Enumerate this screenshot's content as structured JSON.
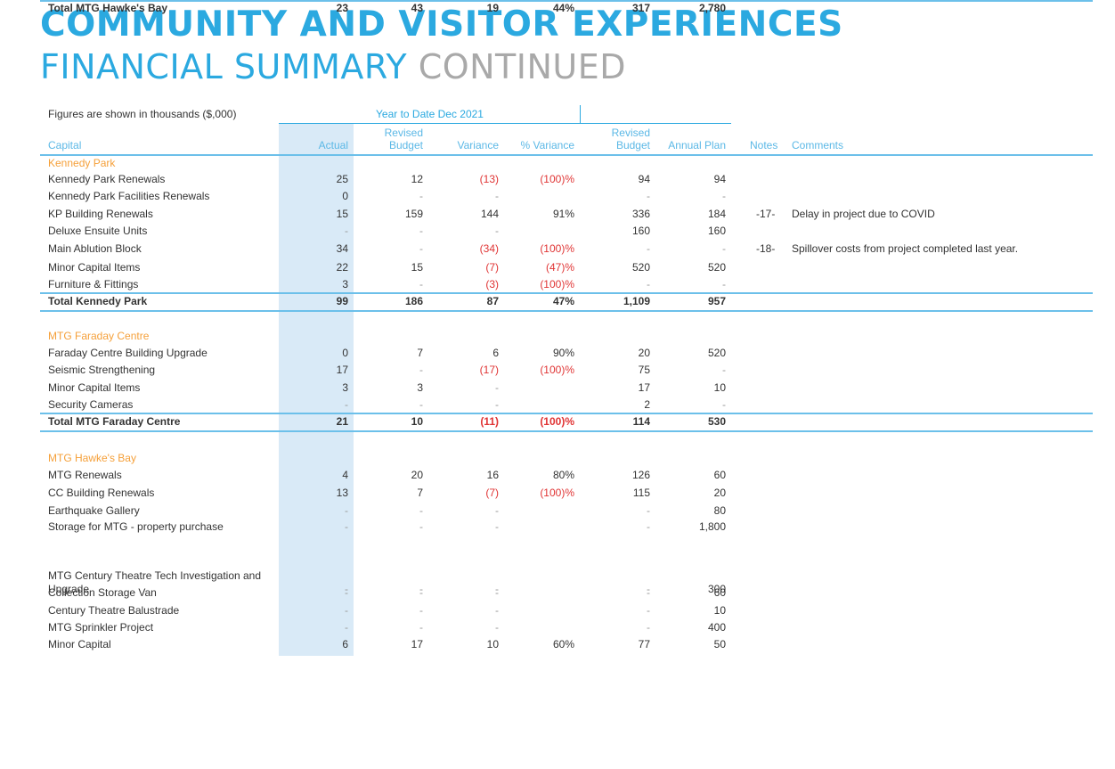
{
  "title": {
    "line1": "COMMUNITY AND VISITOR EXPERIENCES",
    "line2": "FINANCIAL SUMMARY",
    "line2_suffix": "CONTINUED"
  },
  "colors": {
    "accent": "#2ba9e0",
    "section": "#f5a03a",
    "negative": "#e03434",
    "shade": "#d9eaf7"
  },
  "table": {
    "note": "Figures are shown in thousands ($,000)",
    "group_header": "Year to Date Dec 2021",
    "headers": {
      "capital": "Capital",
      "actual": "Actual",
      "rb_line1": "Revised",
      "rb_line2": "Budget",
      "variance": "Variance",
      "pct_variance": "% Variance",
      "rb2_line1": "Revised",
      "rb2_line2": "Budget",
      "annual_plan": "Annual Plan",
      "notes": "Notes",
      "comments": "Comments"
    },
    "rows": [
      {
        "type": "section",
        "label": "Kennedy Park"
      },
      {
        "type": "item",
        "label": "Kennedy Park Renewals",
        "actual": "25",
        "rb": "12",
        "var": "(13)",
        "pct": "(100)%",
        "rb2": "94",
        "ap": "94",
        "notes": "",
        "comment": ""
      },
      {
        "type": "item",
        "label": "Kennedy Park Facilities Renewals",
        "actual": "0",
        "rb": "-",
        "var": "-",
        "pct": "",
        "rb2": "-",
        "ap": "-",
        "notes": "",
        "comment": ""
      },
      {
        "type": "item",
        "label": "KP Building Renewals",
        "actual": "15",
        "rb": "159",
        "var": "144",
        "pct": "91%",
        "rb2": "336",
        "ap": "184",
        "notes": "-17-",
        "comment": "Delay in project due to COVID"
      },
      {
        "type": "item",
        "label": "Deluxe Ensuite Units",
        "actual": "-",
        "rb": "-",
        "var": "-",
        "pct": "",
        "rb2": "160",
        "ap": "160",
        "notes": "",
        "comment": ""
      },
      {
        "type": "item",
        "label": "Main Ablution Block",
        "actual": "34",
        "rb": "-",
        "var": "(34)",
        "pct": "(100)%",
        "rb2": "-",
        "ap": "-",
        "notes": "-18-",
        "comment": "Spillover costs from project completed last year."
      },
      {
        "type": "item",
        "label": "Minor Capital Items",
        "actual": "22",
        "rb": "15",
        "var": "(7)",
        "pct": "(47)%",
        "rb2": "520",
        "ap": "520",
        "notes": "",
        "comment": ""
      },
      {
        "type": "item",
        "label": "Furniture & Fittings",
        "actual": "3",
        "rb": "-",
        "var": "(3)",
        "pct": "(100)%",
        "rb2": "-",
        "ap": "-",
        "notes": "",
        "comment": ""
      },
      {
        "type": "total",
        "label": "Total Kennedy Park",
        "actual": "99",
        "rb": "186",
        "var": "87",
        "pct": "47%",
        "rb2": "1,109",
        "ap": "957"
      },
      {
        "type": "section",
        "label": "MTG Faraday Centre"
      },
      {
        "type": "item",
        "label": "Faraday Centre Building Upgrade",
        "actual": "0",
        "rb": "7",
        "var": "6",
        "pct": "90%",
        "rb2": "20",
        "ap": "520",
        "notes": "",
        "comment": ""
      },
      {
        "type": "item",
        "label": "Seismic Strengthening",
        "actual": "17",
        "rb": "-",
        "var": "(17)",
        "pct": "(100)%",
        "rb2": "75",
        "ap": "-",
        "notes": "",
        "comment": ""
      },
      {
        "type": "item",
        "label": "Minor Capital Items",
        "actual": "3",
        "rb": "3",
        "var": "-",
        "pct": "",
        "rb2": "17",
        "ap": "10",
        "notes": "",
        "comment": ""
      },
      {
        "type": "item",
        "label": "Security Cameras",
        "actual": "-",
        "rb": "-",
        "var": "-",
        "pct": "",
        "rb2": "2",
        "ap": "-",
        "notes": "",
        "comment": ""
      },
      {
        "type": "total",
        "label": "Total MTG Faraday Centre",
        "actual": "21",
        "rb": "10",
        "var": "(11)",
        "pct": "(100)%",
        "rb2": "114",
        "ap": "530"
      },
      {
        "type": "section",
        "label": "MTG Hawke's Bay"
      },
      {
        "type": "item",
        "label": "MTG Renewals",
        "actual": "4",
        "rb": "20",
        "var": "16",
        "pct": "80%",
        "rb2": "126",
        "ap": "60",
        "notes": "",
        "comment": ""
      },
      {
        "type": "item",
        "label": "CC Building Renewals",
        "actual": "13",
        "rb": "7",
        "var": "(7)",
        "pct": "(100)%",
        "rb2": "115",
        "ap": "20",
        "notes": "",
        "comment": ""
      },
      {
        "type": "item",
        "label": "Earthquake Gallery",
        "actual": "-",
        "rb": "-",
        "var": "-",
        "pct": "",
        "rb2": "-",
        "ap": "80",
        "notes": "",
        "comment": ""
      },
      {
        "type": "item",
        "label": "Storage for MTG - property purchase",
        "actual": "-",
        "rb": "-",
        "var": "-",
        "pct": "",
        "rb2": "-",
        "ap": "1,800",
        "notes": "",
        "comment": ""
      },
      {
        "type": "item",
        "label": "MTG Century Theatre Tech Investigation and",
        "label2": "Upgrade",
        "actual": "-",
        "rb": "-",
        "var": "-",
        "pct": "",
        "rb2": "-",
        "ap": "300",
        "notes": "",
        "comment": ""
      },
      {
        "type": "item",
        "label": "Collection Storage Van",
        "actual": "-",
        "rb": "-",
        "var": "-",
        "pct": "",
        "rb2": "-",
        "ap": "60",
        "notes": "",
        "comment": ""
      },
      {
        "type": "item",
        "label": "Century Theatre Balustrade",
        "actual": "-",
        "rb": "-",
        "var": "-",
        "pct": "",
        "rb2": "-",
        "ap": "10",
        "notes": "",
        "comment": ""
      },
      {
        "type": "item",
        "label": "MTG Sprinkler Project",
        "actual": "-",
        "rb": "-",
        "var": "-",
        "pct": "",
        "rb2": "-",
        "ap": "400",
        "notes": "",
        "comment": ""
      },
      {
        "type": "item",
        "label": "Minor Capital",
        "actual": "6",
        "rb": "17",
        "var": "10",
        "pct": "60%",
        "rb2": "77",
        "ap": "50",
        "notes": "",
        "comment": ""
      },
      {
        "type": "total",
        "label": "Total MTG Hawke's Bay",
        "actual": "23",
        "rb": "43",
        "var": "19",
        "pct": "44%",
        "rb2": "317",
        "ap": "2,780"
      }
    ]
  }
}
